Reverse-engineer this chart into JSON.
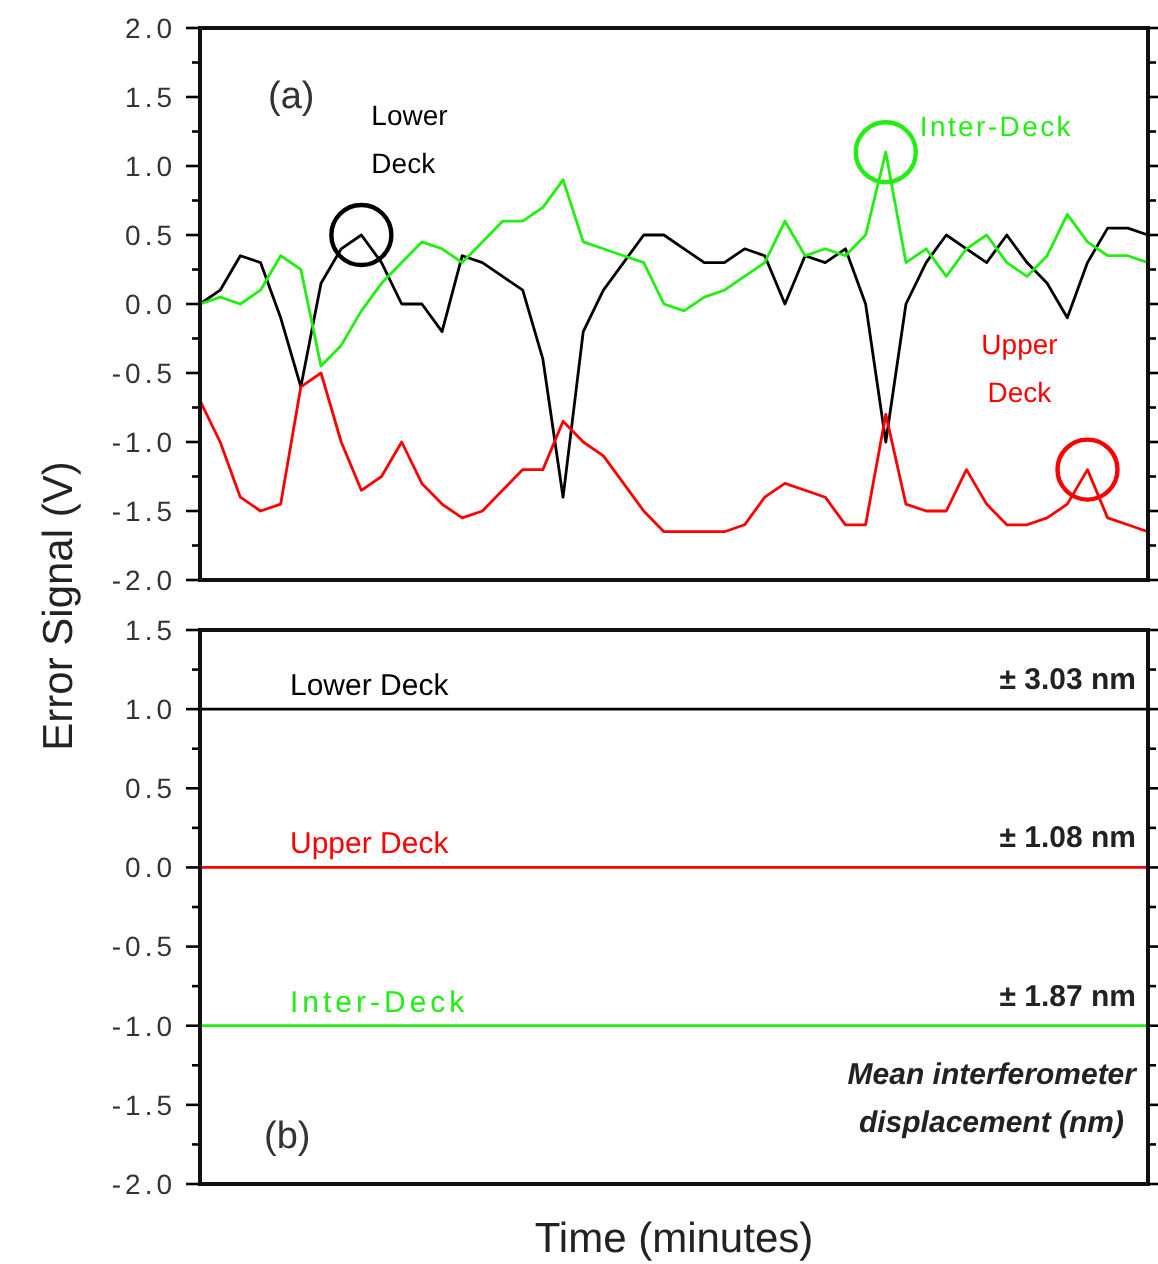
{
  "chart_data": [
    {
      "type": "line",
      "title": "(a)",
      "ylabel": "Error Signal (V)",
      "categories": [
        null,
        null,
        null,
        null,
        null,
        null,
        null,
        null,
        null,
        null,
        null,
        null,
        null,
        null,
        null,
        null,
        null,
        null,
        null,
        null,
        null,
        null,
        null,
        null,
        null,
        null,
        null,
        null,
        null,
        null,
        null,
        null,
        null,
        null,
        null,
        null,
        null,
        null,
        null,
        null,
        null,
        null,
        null,
        null,
        null,
        null,
        null,
        null
      ],
      "series": [
        {
          "name": "Lower Deck",
          "color": "#000000",
          "values": [
            0.0,
            0.1,
            0.35,
            0.3,
            -0.1,
            -0.6,
            0.15,
            0.4,
            0.5,
            0.3,
            0.0,
            0.0,
            -0.2,
            0.35,
            0.3,
            0.2,
            0.1,
            -0.4,
            -1.4,
            -0.2,
            0.1,
            0.3,
            0.5,
            0.5,
            0.4,
            0.3,
            0.3,
            0.4,
            0.35,
            0.0,
            0.35,
            0.3,
            0.4,
            0.0,
            -1.0,
            0.0,
            0.3,
            0.5,
            0.4,
            0.3,
            0.5,
            0.3,
            0.15,
            -0.1,
            0.3,
            0.55,
            0.55,
            0.5
          ]
        },
        {
          "name": "Inter-Deck",
          "color": "#22ee11",
          "values": [
            0.0,
            0.05,
            0.0,
            0.1,
            0.35,
            0.25,
            -0.45,
            -0.3,
            -0.05,
            0.15,
            0.3,
            0.45,
            0.4,
            0.3,
            0.45,
            0.6,
            0.6,
            0.7,
            0.9,
            0.45,
            0.4,
            0.35,
            0.3,
            0.0,
            -0.05,
            0.05,
            0.1,
            0.2,
            0.3,
            0.6,
            0.35,
            0.4,
            0.35,
            0.5,
            1.1,
            0.3,
            0.4,
            0.2,
            0.4,
            0.5,
            0.3,
            0.2,
            0.35,
            0.65,
            0.45,
            0.35,
            0.35,
            0.3
          ]
        },
        {
          "name": "Upper Deck",
          "color": "#ff0000",
          "values": [
            -0.7,
            -1.0,
            -1.4,
            -1.5,
            -1.45,
            -0.6,
            -0.5,
            -1.0,
            -1.35,
            -1.25,
            -1.0,
            -1.3,
            -1.45,
            -1.55,
            -1.5,
            -1.35,
            -1.2,
            -1.2,
            -0.85,
            -1.0,
            -1.1,
            -1.3,
            -1.5,
            -1.65,
            -1.65,
            -1.65,
            -1.65,
            -1.6,
            -1.4,
            -1.3,
            -1.35,
            -1.4,
            -1.6,
            -1.6,
            -0.8,
            -1.45,
            -1.5,
            -1.5,
            -1.2,
            -1.45,
            -1.6,
            -1.6,
            -1.55,
            -1.45,
            -1.2,
            -1.55,
            -1.6,
            -1.65
          ]
        }
      ],
      "ylim": [
        -2,
        2
      ],
      "yticks": [
        {
          "value": 2,
          "label": "2.0"
        },
        {
          "value": 1.75,
          "label": null
        },
        {
          "value": 1.5,
          "label": "1.5"
        },
        {
          "value": 1.25,
          "label": null
        },
        {
          "value": 1,
          "label": "1.0"
        },
        {
          "value": 0.75,
          "label": null
        },
        {
          "value": 0.5,
          "label": "0.5"
        },
        {
          "value": 0.25,
          "label": null
        },
        {
          "value": 0,
          "label": "0.0"
        },
        {
          "value": -0.25,
          "label": null
        },
        {
          "value": -0.5,
          "label": "-0.5"
        },
        {
          "value": -0.75,
          "label": null
        },
        {
          "value": -1,
          "label": "-1.0"
        },
        {
          "value": -1.25,
          "label": null
        },
        {
          "value": -1.5,
          "label": "-1.5"
        },
        {
          "value": -1.75,
          "label": null
        },
        {
          "value": -2,
          "label": "-2.0"
        }
      ],
      "grid": false
    },
    {
      "type": "line",
      "title": "(b)",
      "xlabel": "Time (minutes)",
      "categories": [
        null,
        null,
        null,
        null,
        null,
        null,
        null,
        null,
        null,
        null,
        null,
        null
      ],
      "series": [
        {
          "name": "Lower Deck",
          "color": "#000000",
          "values": [
            1.0,
            1.0,
            1.0,
            1.0,
            1.0,
            1.0,
            1.0,
            1.0,
            1.0,
            1.0,
            1.0,
            1.0
          ]
        },
        {
          "name": "Upper Deck",
          "color": "#ff0000",
          "values": [
            0.0,
            0.0,
            0.0,
            0.0,
            0.0,
            0.0,
            0.0,
            0.0,
            0.0,
            0.0,
            0.0,
            0.0
          ]
        },
        {
          "name": "Inter-Deck",
          "color": "#22ee11",
          "values": [
            -1.0,
            -1.0,
            -1.0,
            -1.0,
            -1.0,
            -1.0,
            -1.0,
            -1.0,
            -1.0,
            -1.0,
            -1.0,
            -1.0
          ]
        }
      ],
      "annotations": [
        {
          "text": "± 3.03 nm",
          "y": 1.0
        },
        {
          "text": "± 1.08 nm",
          "y": 0.0
        },
        {
          "text": "± 1.87 nm",
          "y": -1.0
        },
        "Mean interferometer displacement  (nm)"
      ],
      "ylim": [
        -2,
        1.5
      ],
      "yticks": [
        {
          "value": 1.5,
          "label": "1.5"
        },
        {
          "value": 1.25,
          "label": null
        },
        {
          "value": 1,
          "label": "1.0"
        },
        {
          "value": 0.75,
          "label": null
        },
        {
          "value": 0.5,
          "label": "0.5"
        },
        {
          "value": 0.25,
          "label": null
        },
        {
          "value": 0,
          "label": "0.0"
        },
        {
          "value": -0.25,
          "label": null
        },
        {
          "value": -0.5,
          "label": "-0.5"
        },
        {
          "value": -0.75,
          "label": null
        },
        {
          "value": -1,
          "label": "-1.0"
        },
        {
          "value": -1.25,
          "label": null
        },
        {
          "value": -1.5,
          "label": "-1.5"
        },
        {
          "value": -1.75,
          "label": null
        },
        {
          "value": -2,
          "label": "-2.0"
        }
      ],
      "grid": false
    }
  ]
}
